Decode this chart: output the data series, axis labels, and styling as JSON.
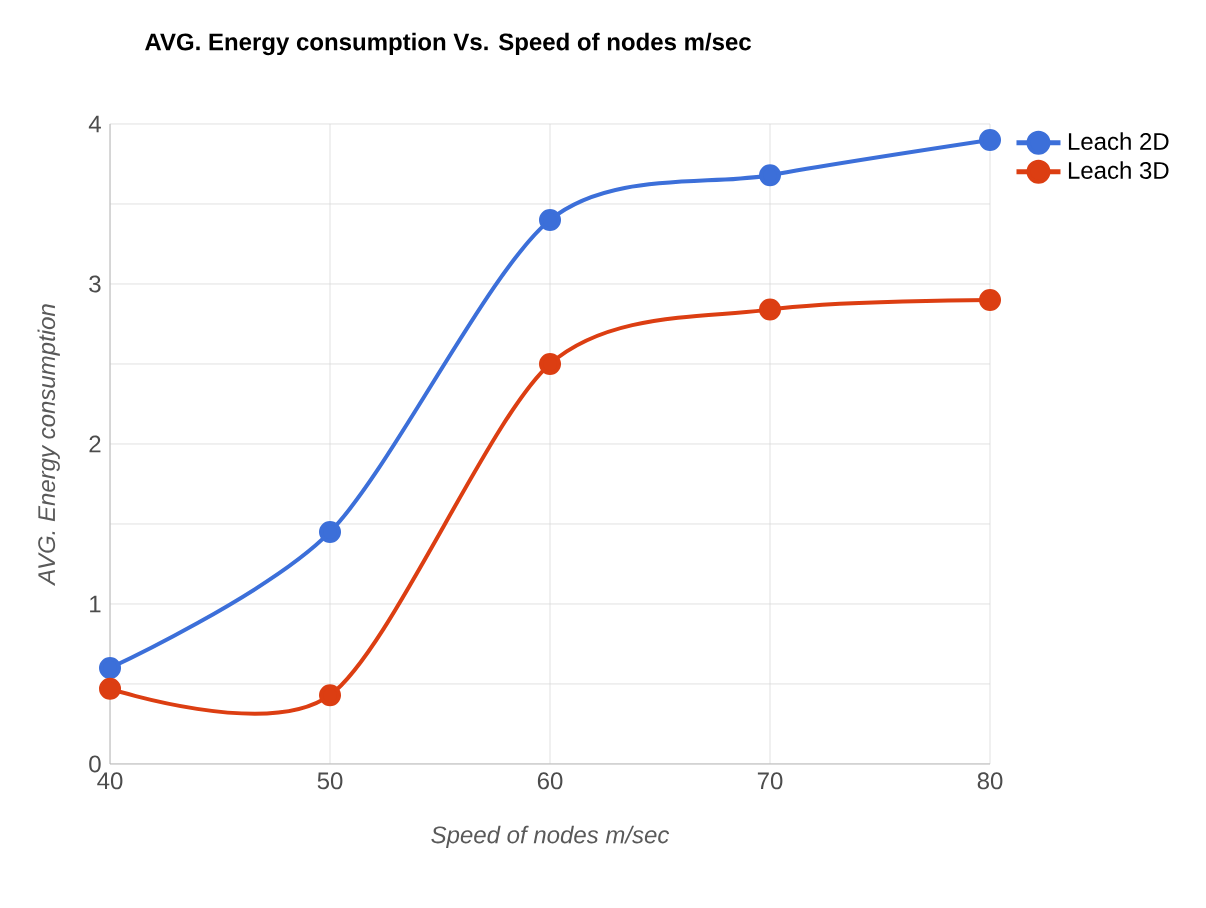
{
  "chart_data": {
    "type": "line",
    "title": "AVG. Energy consumption Vs. Speed of nodes m/sec",
    "xlabel": "Speed of nodes m/sec",
    "ylabel": "AVG. Energy consumption",
    "x": [
      40,
      50,
      60,
      70,
      80
    ],
    "series": [
      {
        "name": "Leach 2D",
        "color": "#3c6fd9",
        "values": [
          0.6,
          1.45,
          3.4,
          3.68,
          3.9
        ]
      },
      {
        "name": "Leach 3D",
        "color": "#dc3e12",
        "values": [
          0.47,
          0.43,
          2.5,
          2.84,
          2.9
        ]
      }
    ],
    "xlim": [
      40,
      80
    ],
    "ylim": [
      0,
      4
    ],
    "xticks": [
      40,
      50,
      60,
      70,
      80
    ],
    "yticks": [
      0,
      {
        "value": 0.5,
        "label": null
      },
      1,
      {
        "value": 1.5,
        "label": null
      },
      2,
      {
        "value": 2.5,
        "label": null
      },
      3,
      {
        "value": 3.5,
        "label": null
      },
      4
    ],
    "grid": true,
    "legend": "top right",
    "marker": "circle",
    "line_style": "solid"
  }
}
